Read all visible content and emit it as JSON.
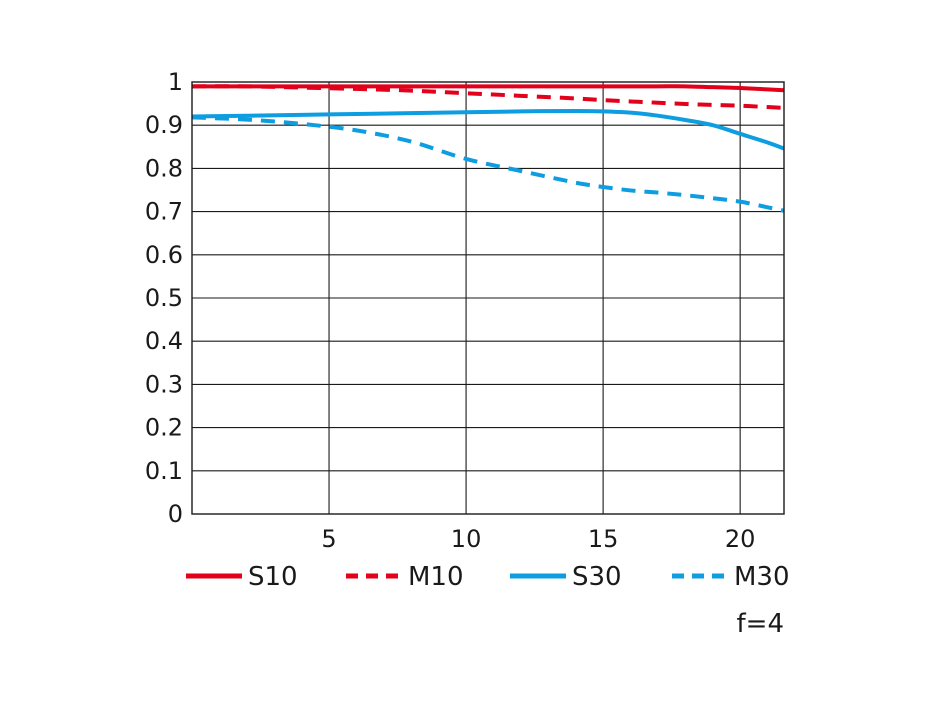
{
  "chart_data": {
    "type": "line",
    "title": "",
    "xlabel": "",
    "ylabel": "",
    "xlim": [
      0,
      21.6
    ],
    "ylim": [
      0,
      1
    ],
    "x_ticks": [
      5,
      10,
      15,
      20
    ],
    "x_tick_labels": [
      "5",
      "10",
      "15",
      "20"
    ],
    "y_ticks": [
      0,
      0.1,
      0.2,
      0.3,
      0.4,
      0.5,
      0.6,
      0.7,
      0.8,
      0.9,
      1
    ],
    "y_tick_labels": [
      "0",
      "0.1",
      "0.2",
      "0.3",
      "0.4",
      "0.5",
      "0.6",
      "0.7",
      "0.8",
      "0.9",
      "1"
    ],
    "grid": true,
    "legend_position": "bottom",
    "annotation": "f=4",
    "series": [
      {
        "name": "S10",
        "color": "#e3001b",
        "dash": "solid",
        "x": [
          0,
          2,
          4,
          6,
          8,
          10,
          12,
          14,
          15,
          16,
          17,
          18,
          19,
          20,
          21,
          21.6
        ],
        "y": [
          0.99,
          0.99,
          0.99,
          0.99,
          0.99,
          0.99,
          0.99,
          0.99,
          0.99,
          0.99,
          0.99,
          0.99,
          0.988,
          0.986,
          0.983,
          0.981
        ]
      },
      {
        "name": "M10",
        "color": "#e3001b",
        "dash": "dashed",
        "x": [
          0,
          2,
          4,
          6,
          8,
          10,
          12,
          14,
          15,
          16,
          17,
          18,
          19,
          20,
          21,
          21.6
        ],
        "y": [
          0.99,
          0.99,
          0.987,
          0.984,
          0.98,
          0.974,
          0.968,
          0.962,
          0.958,
          0.955,
          0.952,
          0.949,
          0.947,
          0.945,
          0.942,
          0.94
        ]
      },
      {
        "name": "S30",
        "color": "#0d9de0",
        "dash": "solid",
        "x": [
          0,
          2,
          4,
          6,
          8,
          10,
          12,
          14,
          15,
          16,
          17,
          18,
          19,
          20,
          21,
          21.6
        ],
        "y": [
          0.92,
          0.922,
          0.924,
          0.926,
          0.928,
          0.93,
          0.932,
          0.933,
          0.932,
          0.929,
          0.922,
          0.912,
          0.9,
          0.88,
          0.86,
          0.846
        ]
      },
      {
        "name": "M30",
        "color": "#0d9de0",
        "dash": "dashed",
        "x": [
          0,
          2,
          4,
          6,
          8,
          10,
          12,
          14,
          15,
          16,
          17,
          18,
          19,
          20,
          21,
          21.6
        ],
        "y": [
          0.918,
          0.913,
          0.903,
          0.888,
          0.862,
          0.822,
          0.794,
          0.767,
          0.757,
          0.749,
          0.744,
          0.738,
          0.731,
          0.723,
          0.71,
          0.702
        ]
      }
    ]
  }
}
